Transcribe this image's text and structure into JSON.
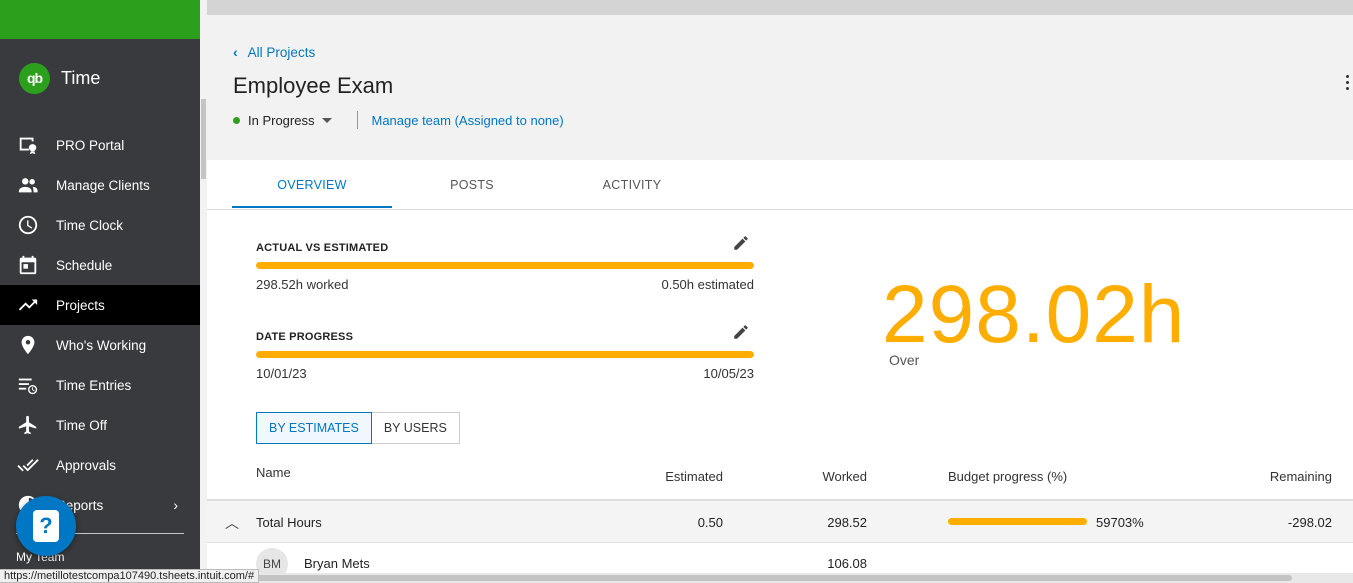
{
  "app": {
    "name": "Time",
    "logo_text": "qb"
  },
  "sidebar": {
    "items": [
      {
        "label": "PRO Portal",
        "icon": "pro-portal-icon"
      },
      {
        "label": "Manage Clients",
        "icon": "people-icon"
      },
      {
        "label": "Time Clock",
        "icon": "clock-icon"
      },
      {
        "label": "Schedule",
        "icon": "calendar-icon"
      },
      {
        "label": "Projects",
        "icon": "trending-icon",
        "active": true
      },
      {
        "label": "Who's Working",
        "icon": "location-pin-icon"
      },
      {
        "label": "Time Entries",
        "icon": "time-entries-icon"
      },
      {
        "label": "Time Off",
        "icon": "airplane-icon"
      },
      {
        "label": "Approvals",
        "icon": "double-check-icon"
      },
      {
        "label": "Reports",
        "icon": "reports-icon"
      }
    ],
    "my_team": "My Team",
    "help_icon": "?"
  },
  "header": {
    "back_label": "All Projects",
    "title": "Employee Exam",
    "status": "In Progress",
    "manage_team": "Manage team (Assigned to none)"
  },
  "tabs": [
    "OVERVIEW",
    "POSTS",
    "ACTIVITY"
  ],
  "actual_vs_estimated": {
    "label": "ACTUAL VS ESTIMATED",
    "worked": "298.52h worked",
    "estimated": "0.50h estimated",
    "fill_percent": 100
  },
  "date_progress": {
    "label": "DATE PROGRESS",
    "start": "10/01/23",
    "end": "10/05/23",
    "fill_percent": 100
  },
  "summary": {
    "value": "298.02h",
    "caption": "Over"
  },
  "view_toggle": {
    "by_estimates": "BY ESTIMATES",
    "by_users": "BY USERS"
  },
  "table": {
    "columns": [
      "Name",
      "Estimated",
      "Worked",
      "Budget progress (%)",
      "Remaining"
    ],
    "total": {
      "name": "Total Hours",
      "estimated": "0.50",
      "worked": "298.52",
      "budget": "59703%",
      "remaining": "-298.02"
    },
    "users": [
      {
        "initials": "BM",
        "name": "Bryan Mets",
        "worked": "106.08"
      }
    ]
  },
  "status_bar_url": "https://metillotestcompa107490.tsheets.intuit.com/#",
  "colors": {
    "accent": "#0077c5",
    "brand_green": "#2ca01c",
    "progress": "#ffae00",
    "sidebar": "#393a3d"
  }
}
